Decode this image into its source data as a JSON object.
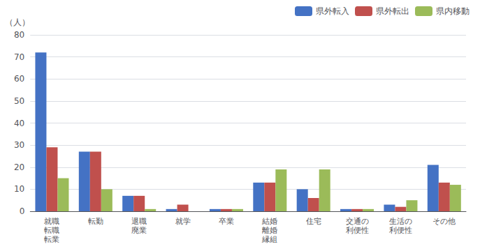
{
  "chart_data": {
    "type": "bar",
    "ylabel": "（人）",
    "categories": [
      "就職\n転職\n転業",
      "転勤",
      "退職\n廃業",
      "就学",
      "卒業",
      "結婚\n離婚\n縁組",
      "住宅",
      "交通の\n利便性",
      "生活の\n利便性",
      "その他"
    ],
    "series": [
      {
        "name": "県外転入",
        "color": "#4472c4",
        "values": [
          72,
          27,
          7,
          1,
          1,
          13,
          10,
          1,
          3,
          21
        ]
      },
      {
        "name": "県外転出",
        "color": "#c0504d",
        "values": [
          29,
          27,
          7,
          3,
          1,
          13,
          6,
          1,
          2,
          13
        ]
      },
      {
        "name": "県内移動",
        "color": "#9bbb59",
        "values": [
          15,
          10,
          1,
          0,
          1,
          19,
          19,
          1,
          5,
          12
        ]
      }
    ],
    "ylim": [
      0,
      80
    ],
    "yticks": [
      0,
      10,
      20,
      30,
      40,
      50,
      60,
      70,
      80
    ],
    "grid": true,
    "legend": "upper right"
  }
}
